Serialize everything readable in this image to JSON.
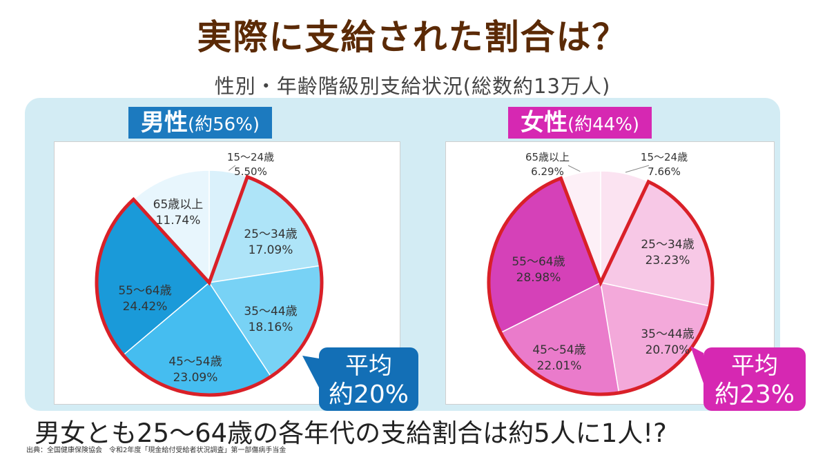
{
  "title": "実際に支給された割合は？",
  "subtitle": "性別・年齢階級別支給状況(総数約13万人)",
  "chart_data": [
    {
      "type": "pie",
      "title": "男性",
      "share": "(約56%)",
      "categories": [
        "15～24歳",
        "25～34歳",
        "35～44歳",
        "45～54歳",
        "55～64歳",
        "65歳以上"
      ],
      "value_labels": [
        "5.50%",
        "17.09%",
        "18.16%",
        "23.09%",
        "24.42%",
        "11.74%"
      ],
      "values": [
        5.5,
        17.09,
        18.16,
        23.09,
        24.42,
        11.74
      ],
      "highlight": [
        "25～34歳",
        "35～44歳",
        "45～54歳",
        "55～64歳"
      ],
      "colors": [
        "#daf1fb",
        "#aee4f8",
        "#78d2f5",
        "#45bdf0",
        "#1a9ad9",
        "#e8f6fd"
      ],
      "callout_line1": "平均",
      "callout_line2": "約20%"
    },
    {
      "type": "pie",
      "title": "女性",
      "share": "(約44%)",
      "categories": [
        "15～24歳",
        "25～34歳",
        "35～44歳",
        "45～54歳",
        "55～64歳",
        "65歳以上"
      ],
      "value_labels": [
        "7.66%",
        "23.23%",
        "20.70%",
        "22.01%",
        "28.98%",
        "6.29%"
      ],
      "values": [
        7.66,
        23.23,
        20.7,
        22.01,
        28.98,
        6.29
      ],
      "highlight": [
        "25～34歳",
        "35～44歳",
        "45～54歳",
        "55～64歳"
      ],
      "colors": [
        "#fbe3f1",
        "#f7c8e6",
        "#f3a9da",
        "#ea7bcb",
        "#d541b8",
        "#fdf0f7"
      ],
      "callout_line1": "平均",
      "callout_line2": "約23%"
    }
  ],
  "highlight_color": "#d92028",
  "footer": "男女とも25～64歳の各年代の支給割合は約5人に1人!?",
  "source": "出典：全国健康保険協会　令和2年度「現金給付受給者状況調査」第一部傷病手当金"
}
